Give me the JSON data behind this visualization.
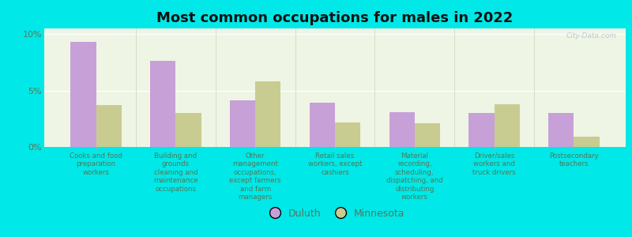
{
  "title": "Most common occupations for males in 2022",
  "categories": [
    "Cooks and food\npreparation\nworkers",
    "Building and\ngrounds\ncleaning and\nmaintenance\noccupations",
    "Other\nmanagement\noccupations,\nexcept farmers\nand farm\nmanagers",
    "Retail sales\nworkers, except\ncashiers",
    "Material\nrecording,\nscheduling,\ndispatching, and\ndistributing\nworkers",
    "Driver/sales\nworkers and\ntruck drivers",
    "Postsecondary\nteachers"
  ],
  "duluth": [
    9.3,
    7.6,
    4.1,
    3.9,
    3.1,
    3.0,
    3.0
  ],
  "minnesota": [
    3.7,
    3.0,
    5.8,
    2.2,
    2.1,
    3.8,
    0.9
  ],
  "duluth_color": "#c8a0d8",
  "minnesota_color": "#c8cc90",
  "background_chart": "#eef5e4",
  "background_fig": "#00e8e8",
  "ylim": [
    0,
    10.5
  ],
  "yticks": [
    0,
    5,
    10
  ],
  "ytick_labels": [
    "0%",
    "5%",
    "10%"
  ],
  "bar_width": 0.32,
  "title_fontsize": 13,
  "legend_labels": [
    "Duluth",
    "Minnesota"
  ],
  "watermark": "City-Data.com",
  "label_color": "#557755",
  "tick_label_fontsize": 6.2
}
